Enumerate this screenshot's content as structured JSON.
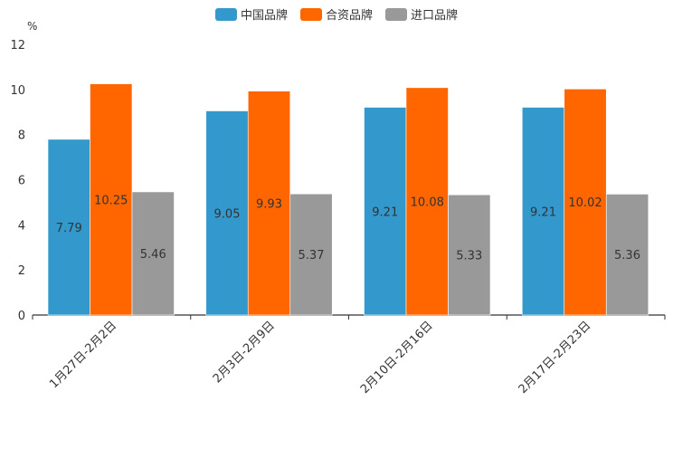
{
  "chart_data": {
    "type": "bar",
    "unit_label": "%",
    "categories": [
      "1月27日-2月2日",
      "2月3日-2月9日",
      "2月10日-2月16日",
      "2月17日-2月23日"
    ],
    "series": [
      {
        "name": "中国品牌",
        "color": "#3399cc",
        "values": [
          7.79,
          9.05,
          9.21,
          9.21
        ]
      },
      {
        "name": "合资品牌",
        "color": "#ff6600",
        "values": [
          10.25,
          9.93,
          10.08,
          10.02
        ]
      },
      {
        "name": "进口品牌",
        "color": "#999999",
        "values": [
          5.46,
          5.37,
          5.33,
          5.36
        ]
      }
    ],
    "ylim": [
      0,
      12
    ],
    "yticks": [
      0,
      2,
      4,
      6,
      8,
      10,
      12
    ],
    "legend_position": "top-center"
  }
}
